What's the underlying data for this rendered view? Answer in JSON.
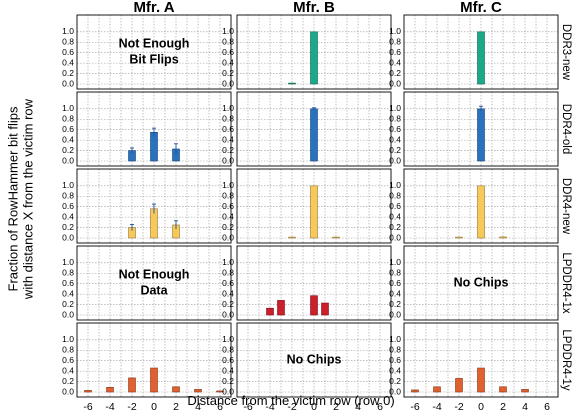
{
  "chart_data": {
    "type": "bar",
    "columns": [
      "Mfr. A",
      "Mfr. B",
      "Mfr. C"
    ],
    "rows": [
      "DDR3-new",
      "DDR4-old",
      "DDR4-new",
      "LPDDR4-1x",
      "LPDDR4-1y"
    ],
    "xlabel": "Distance from the victim row (row 0)",
    "ylabel_lines": [
      "Fraction of RowHammer bit flips",
      "with distance X from the victim row"
    ],
    "x_ticks": [
      -6,
      -4,
      -2,
      0,
      2,
      4,
      6
    ],
    "xlim": [
      -7,
      7
    ],
    "y_ticks": [
      "0.0",
      "0.2",
      "0.4",
      "0.6",
      "0.8",
      "1.0"
    ],
    "ylim": [
      0,
      1.15
    ],
    "grid": true,
    "row_colors": [
      "#1aaa8a",
      "#2a72c0",
      "#f7c85a",
      "#cc1f2c",
      "#e06030"
    ],
    "panels": [
      [
        {
          "note": [
            "Not Enough",
            "Bit Flips"
          ],
          "bars": []
        },
        {
          "note": [],
          "bars": [
            {
              "x": -2,
              "y": 0.01
            },
            {
              "x": 0,
              "y": 1.0
            }
          ]
        },
        {
          "note": [],
          "bars": [
            {
              "x": 0,
              "y": 1.0
            }
          ]
        }
      ],
      [
        {
          "note": [],
          "bars": [
            {
              "x": -2,
              "y": 0.2,
              "err": 0.05
            },
            {
              "x": 0,
              "y": 0.55,
              "err": 0.08
            },
            {
              "x": 2,
              "y": 0.23,
              "err": 0.1
            }
          ]
        },
        {
          "note": [],
          "bars": [
            {
              "x": 0,
              "y": 1.0,
              "err": 0.02
            }
          ]
        },
        {
          "note": [],
          "bars": [
            {
              "x": 0,
              "y": 1.0,
              "err": 0.05
            }
          ]
        }
      ],
      [
        {
          "note": [],
          "bars": [
            {
              "x": -2,
              "y": 0.2,
              "err": 0.06
            },
            {
              "x": 0,
              "y": 0.56,
              "err": 0.09
            },
            {
              "x": 2,
              "y": 0.25,
              "err": 0.08
            }
          ]
        },
        {
          "note": [],
          "bars": [
            {
              "x": -2,
              "y": 0.01
            },
            {
              "x": 0,
              "y": 1.0
            },
            {
              "x": 2,
              "y": 0.01
            }
          ]
        },
        {
          "note": [],
          "bars": [
            {
              "x": -2,
              "y": 0.01
            },
            {
              "x": 0,
              "y": 1.0
            },
            {
              "x": 2,
              "y": 0.02
            }
          ]
        }
      ],
      [
        {
          "note": [
            "Not Enough",
            "Data"
          ],
          "bars": []
        },
        {
          "note": [],
          "bars": [
            {
              "x": -4,
              "y": 0.13
            },
            {
              "x": -3,
              "y": 0.28
            },
            {
              "x": 0,
              "y": 0.37
            },
            {
              "x": 1,
              "y": 0.23
            }
          ]
        },
        {
          "note": [
            "No Chips"
          ],
          "bars": []
        }
      ],
      [
        {
          "note": [],
          "bars": [
            {
              "x": -6,
              "y": 0.03
            },
            {
              "x": -4,
              "y": 0.09
            },
            {
              "x": -2,
              "y": 0.27
            },
            {
              "x": 0,
              "y": 0.46
            },
            {
              "x": 2,
              "y": 0.1
            },
            {
              "x": 4,
              "y": 0.05
            },
            {
              "x": 6,
              "y": 0.02
            }
          ]
        },
        {
          "note": [
            "No Chips"
          ],
          "bars": []
        },
        {
          "note": [],
          "bars": [
            {
              "x": -6,
              "y": 0.04
            },
            {
              "x": -4,
              "y": 0.1
            },
            {
              "x": -2,
              "y": 0.26
            },
            {
              "x": 0,
              "y": 0.46
            },
            {
              "x": 2,
              "y": 0.1
            },
            {
              "x": 4,
              "y": 0.05
            }
          ]
        }
      ]
    ]
  }
}
